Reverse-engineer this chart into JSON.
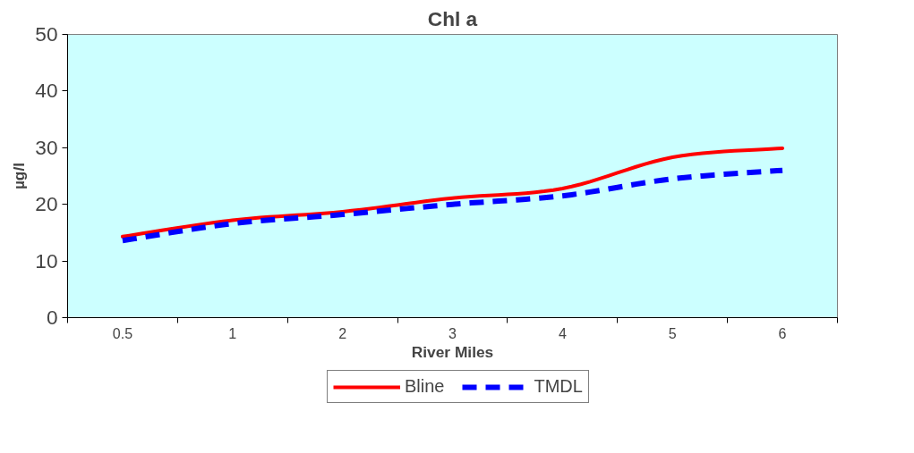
{
  "chart_data": {
    "type": "line",
    "title": "Chl a",
    "xlabel": "River Miles",
    "ylabel": "µg/l",
    "categories": [
      "0.5",
      "1",
      "2",
      "3",
      "4",
      "5",
      "6"
    ],
    "series": [
      {
        "name": "Bline",
        "color": "#ff0000",
        "line_style": "solid",
        "values": [
          14.3,
          17.2,
          18.7,
          21.1,
          22.8,
          28.3,
          29.9
        ]
      },
      {
        "name": "TMDL",
        "color": "#0000ff",
        "line_style": "dashed",
        "values": [
          13.6,
          16.6,
          18.2,
          20.0,
          21.5,
          24.5,
          26
        ]
      }
    ],
    "ylim": [
      0,
      50
    ],
    "yticks": [
      0,
      10,
      20,
      30,
      40,
      50
    ],
    "grid": false,
    "legend": "bottom",
    "marker": "none"
  }
}
